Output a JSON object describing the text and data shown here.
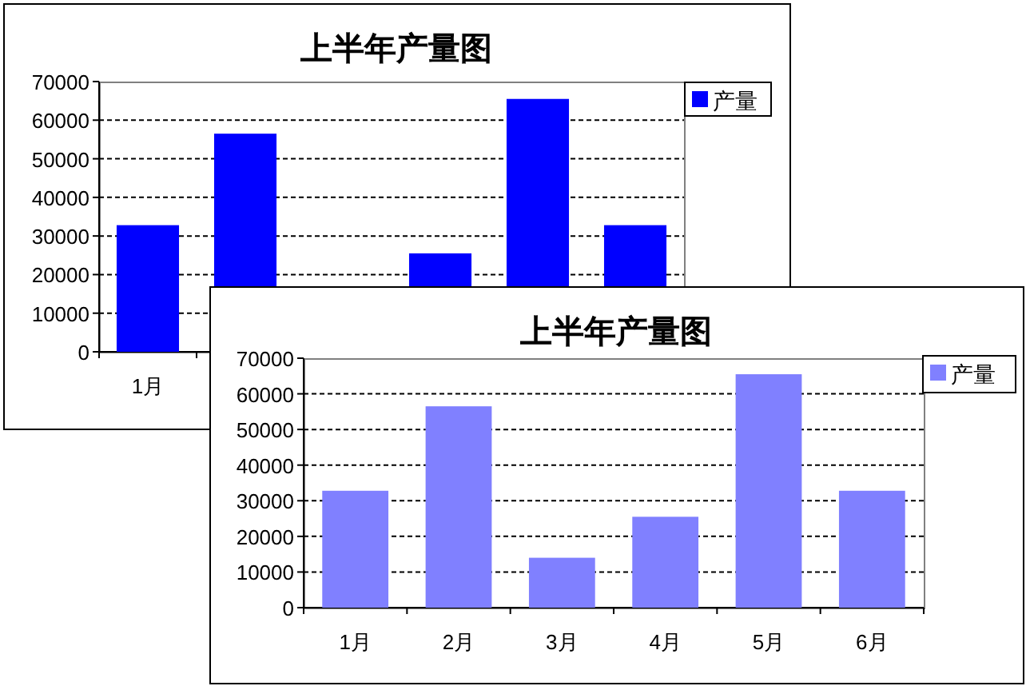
{
  "chart_data": [
    {
      "type": "bar",
      "title": "上半年产量图",
      "categories": [
        "1月",
        null,
        null,
        null,
        null,
        null
      ],
      "series": [
        {
          "name": "产量",
          "color": "#0000ff",
          "values": [
            32800,
            56500,
            null,
            25500,
            65500,
            32800
          ]
        }
      ],
      "ylim": [
        0,
        70000
      ],
      "yticks": [
        0,
        10000,
        20000,
        30000,
        40000,
        50000,
        60000,
        70000
      ],
      "grid": "y",
      "legend": "top right"
    },
    {
      "type": "bar",
      "title": "上半年产量图",
      "categories": [
        "1月",
        "2月",
        "3月",
        "4月",
        "5月",
        "6月"
      ],
      "series": [
        {
          "name": "产量",
          "color": "#8080ff",
          "values": [
            32800,
            56500,
            14000,
            25500,
            65500,
            32800
          ]
        }
      ],
      "ylim": [
        0,
        70000
      ],
      "yticks": [
        0,
        10000,
        20000,
        30000,
        40000,
        50000,
        60000,
        70000
      ],
      "grid": "y",
      "legend": "top right"
    }
  ]
}
